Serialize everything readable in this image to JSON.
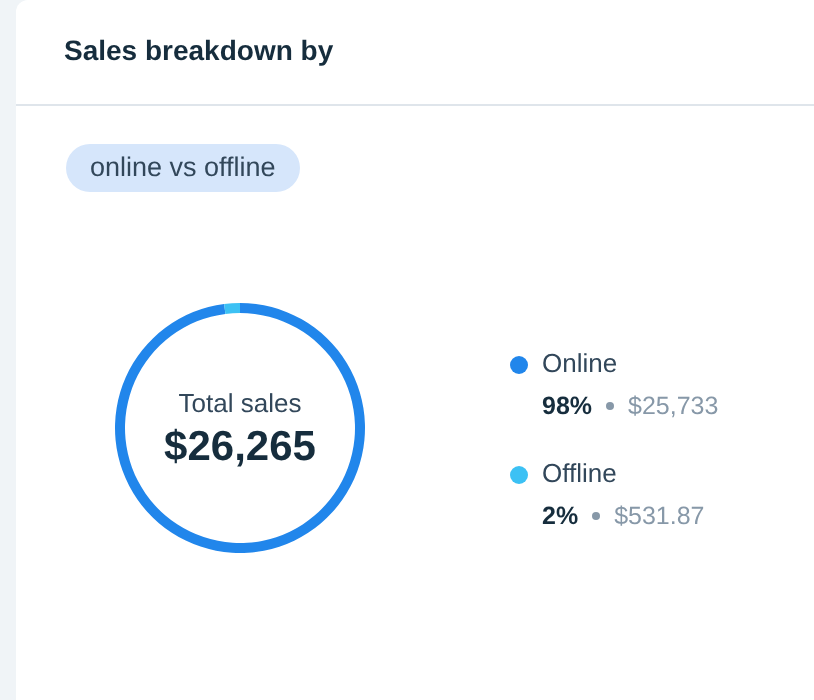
{
  "chart_data": {
    "type": "donut",
    "title": "Sales breakdown by",
    "subtitle": "online vs offline",
    "categories": [
      "Online",
      "Offline"
    ],
    "values": [
      25733,
      531.87
    ],
    "colors": [
      "#2186eb",
      "#3cc1f4"
    ],
    "value_labels": [
      "$25,733",
      "$531.87"
    ],
    "annotations": [
      "Total sales",
      "$26,265",
      "98%",
      "2%"
    ],
    "legend": "right"
  }
}
